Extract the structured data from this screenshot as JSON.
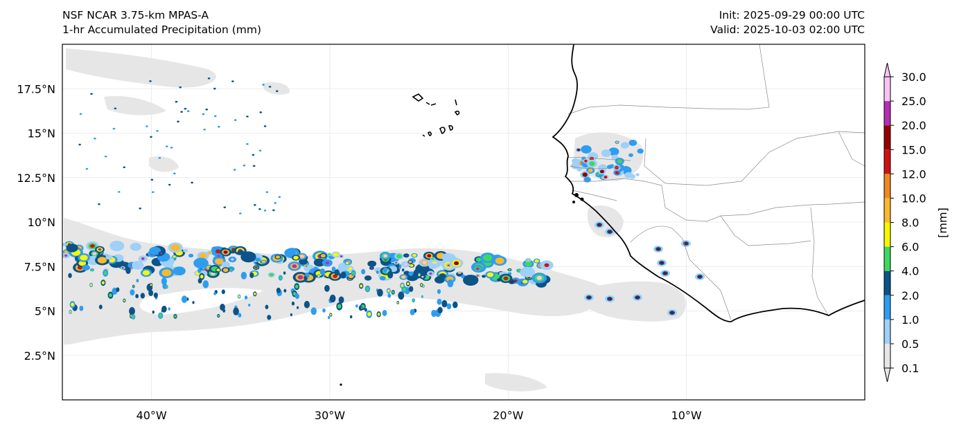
{
  "title": {
    "model": "NSF NCAR 3.75-km MPAS-A",
    "field": "1-hr Accumulated Precipitation (mm)",
    "init": "Init: 2025-09-29 00:00 UTC",
    "valid": "Valid: 2025-10-03 02:00 UTC"
  },
  "map": {
    "lon_range": [
      -45,
      0
    ],
    "lat_range": [
      0,
      20
    ],
    "lat_ticks": [
      {
        "value": 17.5,
        "label": "17.5°N"
      },
      {
        "value": 15,
        "label": "15°N"
      },
      {
        "value": 12.5,
        "label": "12.5°N"
      },
      {
        "value": 10,
        "label": "10°N"
      },
      {
        "value": 7.5,
        "label": "7.5°N"
      },
      {
        "value": 5,
        "label": "5°N"
      },
      {
        "value": 2.5,
        "label": "2.5°N"
      }
    ],
    "lon_ticks": [
      {
        "value": -40,
        "label": "40°W"
      },
      {
        "value": -30,
        "label": "30°W"
      },
      {
        "value": -20,
        "label": "20°W"
      },
      {
        "value": -10,
        "label": "10°W"
      }
    ],
    "colors": {
      "land_line": "#000000",
      "border_line": "#8a8a8a",
      "grid": "#e6e6e6"
    }
  },
  "colorbar": {
    "unit_label": "[mm]",
    "levels": [
      "0.1",
      "0.5",
      "1.0",
      "2.0",
      "4.0",
      "6.0",
      "8.0",
      "10.0",
      "12.0",
      "15.0",
      "20.0",
      "25.0",
      "30.0"
    ],
    "colors": [
      "#e6e6e6",
      "#9fd0f7",
      "#2e9df0",
      "#0c5388",
      "#3fd85e",
      "#f7f700",
      "#f8b92e",
      "#ee8a1f",
      "#cd1313",
      "#960000",
      "#b32fb3",
      "#f9c3f5"
    ]
  }
}
